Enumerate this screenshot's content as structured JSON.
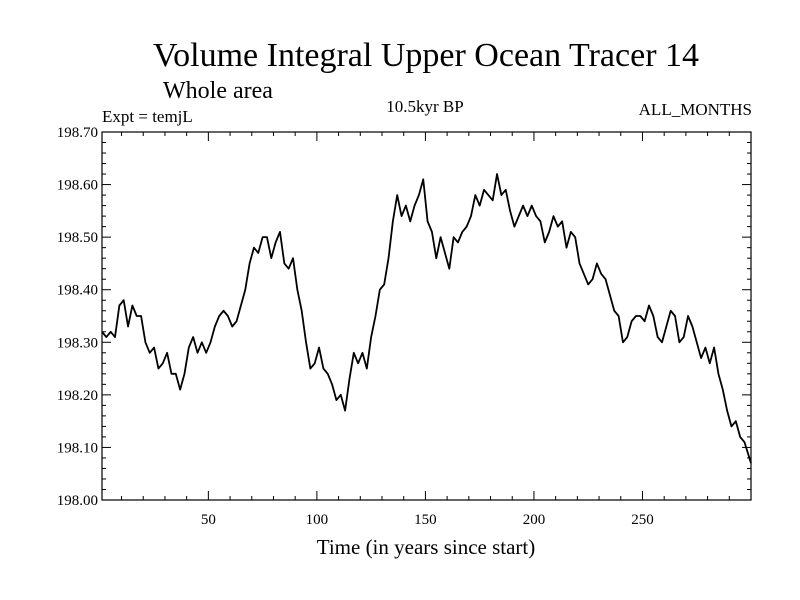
{
  "chart_data": {
    "type": "line",
    "title": "Volume Integral Upper Ocean Tracer 14",
    "subtitle": "Whole area",
    "left_label": "Expt = temjL",
    "center_label": "10.5kyr BP",
    "right_label": "ALL_MONTHS",
    "xlabel": "Time (in years since start)",
    "ylabel": "",
    "xlim": [
      1,
      300
    ],
    "ylim": [
      198.0,
      198.7
    ],
    "xticks": [
      50,
      100,
      150,
      200,
      250
    ],
    "xtick_labels": [
      "50",
      "100",
      "150",
      "200",
      "250"
    ],
    "yticks": [
      198.0,
      198.1,
      198.2,
      198.3,
      198.4,
      198.5,
      198.6,
      198.7
    ],
    "ytick_labels": [
      "198.00",
      "198.10",
      "198.20",
      "198.30",
      "198.40",
      "198.50",
      "198.60",
      "198.70"
    ],
    "line_color": "#000000",
    "series": [
      {
        "name": "Volume Integral Upper Ocean Tracer 14",
        "x": [
          1,
          3,
          5,
          7,
          9,
          11,
          13,
          15,
          17,
          19,
          21,
          23,
          25,
          27,
          29,
          31,
          33,
          35,
          37,
          39,
          41,
          43,
          45,
          47,
          49,
          51,
          53,
          55,
          57,
          59,
          61,
          63,
          65,
          67,
          69,
          71,
          73,
          75,
          77,
          79,
          81,
          83,
          85,
          87,
          89,
          91,
          93,
          95,
          97,
          99,
          101,
          103,
          105,
          107,
          109,
          111,
          113,
          115,
          117,
          119,
          121,
          123,
          125,
          127,
          129,
          131,
          133,
          135,
          137,
          139,
          141,
          143,
          145,
          147,
          149,
          151,
          153,
          155,
          157,
          159,
          161,
          163,
          165,
          167,
          169,
          171,
          173,
          175,
          177,
          179,
          181,
          183,
          185,
          187,
          189,
          191,
          193,
          195,
          197,
          199,
          201,
          203,
          205,
          207,
          209,
          211,
          213,
          215,
          217,
          219,
          221,
          223,
          225,
          227,
          229,
          231,
          233,
          235,
          237,
          239,
          241,
          243,
          245,
          247,
          249,
          251,
          253,
          255,
          257,
          259,
          261,
          263,
          265,
          267,
          269,
          271,
          273,
          275,
          277,
          279,
          281,
          283,
          285,
          287,
          289,
          291,
          293,
          295,
          297,
          300
        ],
        "values": [
          198.32,
          198.31,
          198.32,
          198.31,
          198.37,
          198.38,
          198.33,
          198.37,
          198.35,
          198.35,
          198.3,
          198.28,
          198.29,
          198.25,
          198.26,
          198.28,
          198.24,
          198.24,
          198.21,
          198.24,
          198.29,
          198.31,
          198.28,
          198.3,
          198.28,
          198.3,
          198.33,
          198.35,
          198.36,
          198.35,
          198.33,
          198.34,
          198.37,
          198.4,
          198.45,
          198.48,
          198.47,
          198.5,
          198.5,
          198.46,
          198.49,
          198.51,
          198.45,
          198.44,
          198.46,
          198.4,
          198.36,
          198.3,
          198.25,
          198.26,
          198.29,
          198.25,
          198.24,
          198.22,
          198.19,
          198.2,
          198.17,
          198.23,
          198.28,
          198.26,
          198.28,
          198.25,
          198.31,
          198.35,
          198.4,
          198.41,
          198.46,
          198.53,
          198.58,
          198.54,
          198.56,
          198.53,
          198.56,
          198.58,
          198.61,
          198.53,
          198.51,
          198.46,
          198.5,
          198.47,
          198.44,
          198.5,
          198.49,
          198.51,
          198.52,
          198.54,
          198.58,
          198.56,
          198.59,
          198.58,
          198.57,
          198.62,
          198.58,
          198.59,
          198.55,
          198.52,
          198.54,
          198.56,
          198.54,
          198.56,
          198.54,
          198.53,
          198.49,
          198.51,
          198.54,
          198.52,
          198.53,
          198.48,
          198.51,
          198.5,
          198.45,
          198.43,
          198.41,
          198.42,
          198.45,
          198.43,
          198.42,
          198.39,
          198.36,
          198.35,
          198.3,
          198.31,
          198.34,
          198.35,
          198.35,
          198.34,
          198.37,
          198.35,
          198.31,
          198.3,
          198.33,
          198.36,
          198.35,
          198.3,
          198.31,
          198.35,
          198.33,
          198.3,
          198.27,
          198.29,
          198.26,
          198.29,
          198.24,
          198.21,
          198.17,
          198.14,
          198.15,
          198.12,
          198.11,
          198.07
        ]
      }
    ]
  }
}
